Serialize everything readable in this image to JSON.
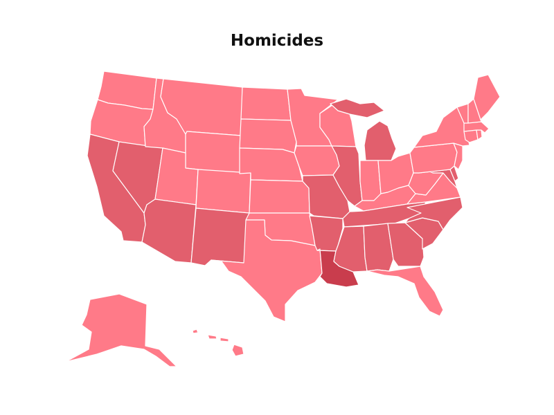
{
  "title": "Homicides",
  "colors": {
    "tier_low": "#ff7a88",
    "tier_mid": "#e25f6d",
    "tier_high": "#c93d4d",
    "border": "#ffffff",
    "background": "#ffffff"
  },
  "states": [
    {
      "name": "washington",
      "tier": "low"
    },
    {
      "name": "oregon",
      "tier": "low"
    },
    {
      "name": "california",
      "tier": "mid"
    },
    {
      "name": "nevada",
      "tier": "mid"
    },
    {
      "name": "idaho",
      "tier": "low"
    },
    {
      "name": "montana",
      "tier": "low"
    },
    {
      "name": "wyoming",
      "tier": "low"
    },
    {
      "name": "utah",
      "tier": "low"
    },
    {
      "name": "arizona",
      "tier": "mid"
    },
    {
      "name": "colorado",
      "tier": "low"
    },
    {
      "name": "new-mexico",
      "tier": "mid"
    },
    {
      "name": "north-dakota",
      "tier": "low"
    },
    {
      "name": "south-dakota",
      "tier": "low"
    },
    {
      "name": "nebraska",
      "tier": "low"
    },
    {
      "name": "kansas",
      "tier": "low"
    },
    {
      "name": "oklahoma",
      "tier": "low"
    },
    {
      "name": "texas",
      "tier": "low"
    },
    {
      "name": "minnesota",
      "tier": "low"
    },
    {
      "name": "iowa",
      "tier": "low"
    },
    {
      "name": "missouri",
      "tier": "mid"
    },
    {
      "name": "arkansas",
      "tier": "mid"
    },
    {
      "name": "louisiana",
      "tier": "high"
    },
    {
      "name": "wisconsin",
      "tier": "low"
    },
    {
      "name": "illinois",
      "tier": "mid"
    },
    {
      "name": "michigan",
      "tier": "mid"
    },
    {
      "name": "indiana",
      "tier": "low"
    },
    {
      "name": "ohio",
      "tier": "low"
    },
    {
      "name": "kentucky",
      "tier": "low"
    },
    {
      "name": "tennessee",
      "tier": "mid"
    },
    {
      "name": "mississippi",
      "tier": "mid"
    },
    {
      "name": "alabama",
      "tier": "mid"
    },
    {
      "name": "georgia",
      "tier": "mid"
    },
    {
      "name": "florida",
      "tier": "low"
    },
    {
      "name": "south-carolina",
      "tier": "mid"
    },
    {
      "name": "north-carolina",
      "tier": "mid"
    },
    {
      "name": "virginia",
      "tier": "low"
    },
    {
      "name": "west-virginia",
      "tier": "low"
    },
    {
      "name": "maryland",
      "tier": "mid"
    },
    {
      "name": "delaware",
      "tier": "mid"
    },
    {
      "name": "pennsylvania",
      "tier": "low"
    },
    {
      "name": "new-jersey",
      "tier": "low"
    },
    {
      "name": "new-york",
      "tier": "low"
    },
    {
      "name": "connecticut",
      "tier": "low"
    },
    {
      "name": "rhode-island",
      "tier": "low"
    },
    {
      "name": "massachusetts",
      "tier": "low"
    },
    {
      "name": "vermont",
      "tier": "low"
    },
    {
      "name": "new-hampshire",
      "tier": "low"
    },
    {
      "name": "maine",
      "tier": "low"
    },
    {
      "name": "alaska",
      "tier": "low"
    },
    {
      "name": "hawaii",
      "tier": "low"
    }
  ]
}
